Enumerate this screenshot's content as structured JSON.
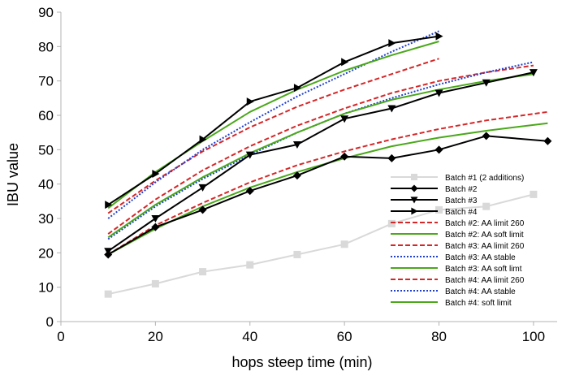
{
  "chart_data": {
    "type": "line",
    "title": "",
    "xlabel": "hops steep time (min)",
    "ylabel": "IBU value",
    "xlim": [
      0,
      105
    ],
    "ylim": [
      0,
      90
    ],
    "x_ticks": [
      "0",
      "20",
      "40",
      "60",
      "80",
      "100"
    ],
    "y_ticks": [
      "0",
      "10",
      "20",
      "30",
      "40",
      "50",
      "60",
      "70",
      "80",
      "90"
    ],
    "grid": "vertical-none, horizontal-none",
    "legend_position": "lower-right",
    "series": [
      {
        "name": "Batch #1 (2 additions)",
        "color": "#d9d9d9",
        "marker": "square",
        "dash": "solid",
        "x": [
          10,
          20,
          30,
          40,
          50,
          60,
          70,
          80,
          90,
          100
        ],
        "y": [
          8,
          11,
          14.5,
          16.5,
          19.5,
          22.5,
          28.5,
          32.5,
          33.5,
          37
        ]
      },
      {
        "name": "Batch #2",
        "color": "#000000",
        "marker": "diamond",
        "dash": "solid",
        "x": [
          10,
          20,
          30,
          40,
          50,
          60,
          70,
          80,
          90,
          103
        ],
        "y": [
          19.5,
          27.5,
          32.5,
          38,
          42.5,
          48,
          47.5,
          50,
          54,
          52.5
        ]
      },
      {
        "name": "Batch #3",
        "color": "#000000",
        "marker": "triangle-down",
        "dash": "solid",
        "x": [
          10,
          20,
          30,
          40,
          50,
          60,
          70,
          80,
          90,
          100
        ],
        "y": [
          20.5,
          30,
          39,
          48.5,
          51.5,
          59,
          62,
          66.5,
          69.5,
          72.5
        ]
      },
      {
        "name": "Batch #4",
        "color": "#000000",
        "marker": "triangle-right",
        "dash": "solid",
        "x": [
          10,
          20,
          30,
          40,
          50,
          60,
          70,
          80
        ],
        "y": [
          34,
          43,
          53,
          64,
          68,
          75.5,
          81,
          83
        ]
      },
      {
        "name": "Batch #2: AA limit 260",
        "color": "#d62728",
        "marker": "none",
        "dash": "dashed",
        "x": [
          10,
          20,
          30,
          40,
          50,
          60,
          70,
          80,
          90,
          103
        ],
        "y": [
          19.5,
          28,
          34.5,
          40.5,
          45.5,
          49.5,
          53,
          56,
          58.5,
          61
        ]
      },
      {
        "name": "Batch #2: AA soft limit",
        "color": "#4aa81a",
        "marker": "none",
        "dash": "solid",
        "x": [
          10,
          20,
          30,
          40,
          50,
          60,
          70,
          80,
          90,
          103
        ],
        "y": [
          19.5,
          27,
          33.5,
          39,
          43.5,
          47.5,
          51,
          53.5,
          55.5,
          57.7
        ]
      },
      {
        "name": "Batch #3: AA limit 260",
        "color": "#d62728",
        "marker": "none",
        "dash": "dashed",
        "x": [
          10,
          20,
          30,
          40,
          50,
          60,
          70,
          80,
          90,
          100
        ],
        "y": [
          25.5,
          35.5,
          44,
          51,
          57,
          62,
          66.5,
          70,
          72.5,
          74.5
        ]
      },
      {
        "name": "Batch #3: AA stable",
        "color": "#1f3fcf",
        "marker": "none",
        "dash": "dotted",
        "x": [
          10,
          20,
          30,
          40,
          50,
          60,
          70,
          80,
          90,
          100
        ],
        "y": [
          24,
          33.5,
          41.5,
          48.5,
          55,
          60.5,
          65,
          69,
          72.5,
          75.5
        ]
      },
      {
        "name": "Batch #3: AA soft limt",
        "color": "#4aa81a",
        "marker": "none",
        "dash": "solid",
        "x": [
          10,
          20,
          30,
          40,
          50,
          60,
          70,
          80,
          90,
          100
        ],
        "y": [
          24.5,
          34,
          42,
          49,
          55,
          60.5,
          64.5,
          67.5,
          70,
          72
        ]
      },
      {
        "name": "Batch #4: AA limit 260",
        "color": "#d62728",
        "marker": "none",
        "dash": "dashed",
        "x": [
          10,
          20,
          30,
          40,
          50,
          60,
          70,
          80
        ],
        "y": [
          31.5,
          41,
          49.5,
          56.5,
          62.5,
          67.5,
          72,
          76.5
        ]
      },
      {
        "name": "Batch #4: AA stable",
        "color": "#1f3fcf",
        "marker": "none",
        "dash": "dotted",
        "x": [
          10,
          20,
          30,
          40,
          50,
          60,
          70,
          80
        ],
        "y": [
          30,
          40.5,
          50,
          58,
          65.5,
          72,
          78.5,
          84.5
        ]
      },
      {
        "name": "Batch #4: soft limit",
        "color": "#4aa81a",
        "marker": "none",
        "dash": "solid",
        "x": [
          10,
          20,
          30,
          40,
          50,
          60,
          70,
          80
        ],
        "y": [
          33,
          43.5,
          52.5,
          61,
          67.5,
          73,
          77.5,
          81.5
        ]
      }
    ]
  }
}
